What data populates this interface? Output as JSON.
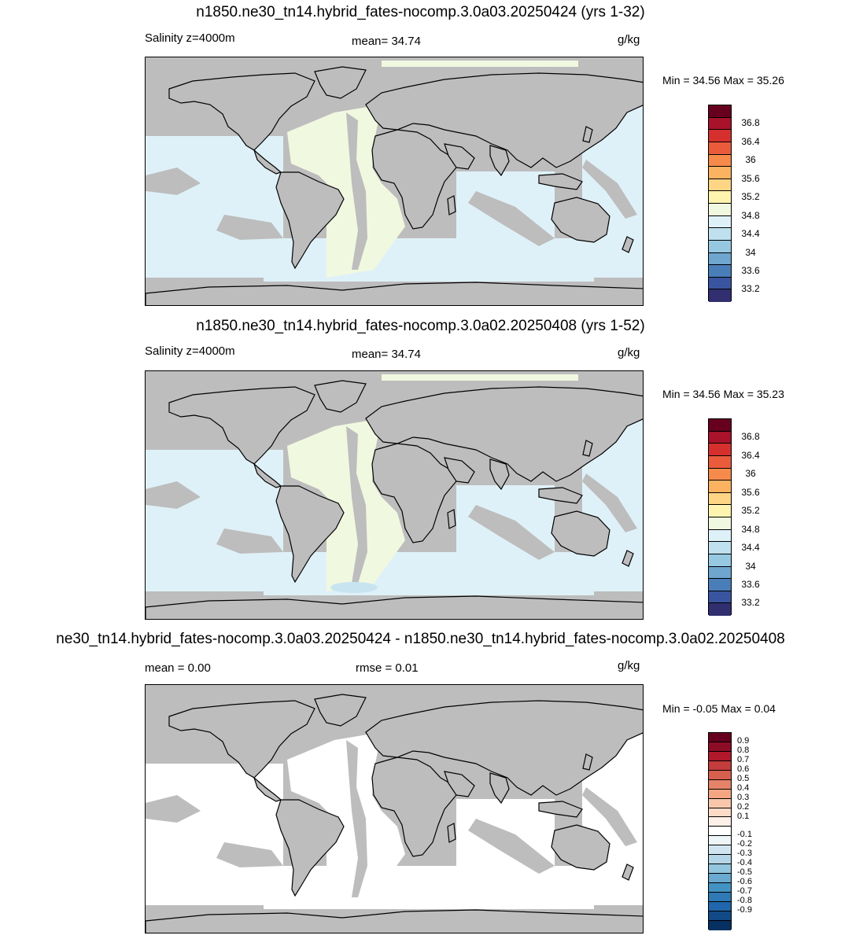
{
  "panels": [
    {
      "title": "n1850.ne30_tn14.hybrid_fates-nocomp.3.0a03.20250424 (yrs 1-32)",
      "left_label": "Salinity z=4000m",
      "center_label": "mean=  34.74",
      "units": "g/kg",
      "minmax": "Min =  34.56 Max =  35.26",
      "ocean_color": "#dff1f8",
      "alt_color": "#f1f8e0",
      "colorbar": {
        "colors": [
          "#67001f",
          "#a8122a",
          "#d6302e",
          "#ea5b3c",
          "#f58a4b",
          "#fbb261",
          "#fdd585",
          "#fff3b0",
          "#f1f8e0",
          "#dff1f8",
          "#bfe1ef",
          "#96c8e2",
          "#6ea6d0",
          "#4a7eb9",
          "#3a55a0",
          "#312f6f"
        ],
        "labels": [
          "36.8",
          "36.4",
          "36",
          "35.6",
          "35.2",
          "34.8",
          "34.4",
          "34",
          "33.6",
          "33.2"
        ]
      }
    },
    {
      "title": "n1850.ne30_tn14.hybrid_fates-nocomp.3.0a02.20250408 (yrs 1-52)",
      "left_label": "Salinity z=4000m",
      "center_label": "mean=  34.74",
      "units": "g/kg",
      "minmax": "Min =  34.56 Max =  35.23",
      "ocean_color": "#dff1f8",
      "alt_color": "#f1f8e0",
      "colorbar": {
        "colors": [
          "#67001f",
          "#a8122a",
          "#d6302e",
          "#ea5b3c",
          "#f58a4b",
          "#fbb261",
          "#fdd585",
          "#fff3b0",
          "#f1f8e0",
          "#dff1f8",
          "#bfe1ef",
          "#96c8e2",
          "#6ea6d0",
          "#4a7eb9",
          "#3a55a0",
          "#312f6f"
        ],
        "labels": [
          "36.8",
          "36.4",
          "36",
          "35.6",
          "35.2",
          "34.8",
          "34.4",
          "34",
          "33.6",
          "33.2"
        ]
      }
    },
    {
      "title": "ne30_tn14.hybrid_fates-nocomp.3.0a03.20250424 - n1850.ne30_tn14.hybrid_fates-nocomp.3.0a02.20250408",
      "left_label": "mean =   0.00",
      "center_label": "rmse =   0.01",
      "units": "g/kg",
      "minmax": "Min =  -0.05 Max =   0.04",
      "ocean_color": "#ffffff",
      "alt_color": "#ffffff",
      "colorbar": {
        "colors": [
          "#67001f",
          "#8c0d25",
          "#b2182b",
          "#c43c3c",
          "#d6604d",
          "#e58368",
          "#f4a582",
          "#f8c7ab",
          "#fddbc7",
          "#fdf0e8",
          "#ffffff",
          "#eef5f9",
          "#d1e5f0",
          "#b4d6e8",
          "#92c5de",
          "#6aa9d0",
          "#4393c3",
          "#2f79b5",
          "#2166ac",
          "#124a87",
          "#053061"
        ],
        "labels": [
          "0.9",
          "0.8",
          "0.7",
          "0.6",
          "0.5",
          "0.4",
          "0.3",
          "0.2",
          "0.1",
          "-0.1",
          "-0.2",
          "-0.3",
          "-0.4",
          "-0.5",
          "-0.6",
          "-0.7",
          "-0.8",
          "-0.9"
        ]
      }
    }
  ]
}
